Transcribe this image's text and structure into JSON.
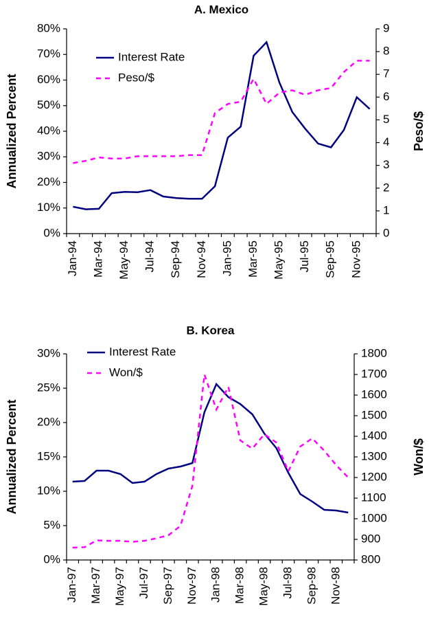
{
  "chart_data": [
    {
      "type": "line",
      "title": "A. Mexico",
      "categories": [
        "Jan-94",
        null,
        "Mar-94",
        null,
        "May-94",
        null,
        "Jul-94",
        null,
        "Sep-94",
        null,
        "Nov-94",
        null,
        "Jan-95",
        null,
        "Mar-95",
        null,
        "May-95",
        null,
        "Jul-95",
        null,
        "Sep-95",
        null,
        "Nov-95",
        null
      ],
      "y_label": "Annualized Percent",
      "y2_label": "Peso/$",
      "ylim": [
        0,
        80
      ],
      "yticks": [
        {
          "value": 0,
          "label": "0%"
        },
        {
          "value": 10,
          "label": "10%"
        },
        {
          "value": 20,
          "label": "20%"
        },
        {
          "value": 30,
          "label": "30%"
        },
        {
          "value": 40,
          "label": "40%"
        },
        {
          "value": 50,
          "label": "50%"
        },
        {
          "value": 60,
          "label": "60%"
        },
        {
          "value": 70,
          "label": "70%"
        },
        {
          "value": 80,
          "label": "80%"
        }
      ],
      "y2lim": [
        0,
        9
      ],
      "y2ticks": [
        0,
        1,
        2,
        3,
        4,
        5,
        6,
        7,
        8,
        9
      ],
      "legend": "upper left",
      "grid": false,
      "series": [
        {
          "name": "Interest Rate",
          "color": "#000080",
          "line_style": "solid",
          "values": [
            10.5,
            9.5,
            9.7,
            15.8,
            16.3,
            16.2,
            17.0,
            14.5,
            13.9,
            13.6,
            13.6,
            18.5,
            37.5,
            41.8,
            69.5,
            74.8,
            59.0,
            47.5,
            41.0,
            35.2,
            33.7,
            40.5,
            53.3,
            48.7
          ]
        },
        {
          "name": "Peso/$",
          "color": "#ff00ff",
          "line_style": "dashed",
          "axis": "y2",
          "values": [
            3.1,
            3.2,
            3.35,
            3.3,
            3.3,
            3.4,
            3.4,
            3.4,
            3.4,
            3.45,
            3.45,
            5.3,
            5.7,
            5.8,
            6.8,
            5.7,
            6.2,
            6.3,
            6.1,
            6.3,
            6.4,
            7.1,
            7.6,
            7.6
          ]
        }
      ]
    },
    {
      "type": "line",
      "title": "B. Korea",
      "categories": [
        "Jan-97",
        null,
        "Mar-97",
        null,
        "May-97",
        null,
        "Jul-97",
        null,
        "Sep-97",
        null,
        "Nov-97",
        null,
        "Jan-98",
        null,
        "Mar-98",
        null,
        "May-98",
        null,
        "Jul-98",
        null,
        "Sep-98",
        null,
        "Nov-98",
        null
      ],
      "y_label": "Annualized Percent",
      "y2_label": "Won/$",
      "ylim": [
        0,
        30
      ],
      "yticks": [
        {
          "value": 0,
          "label": "0%"
        },
        {
          "value": 5,
          "label": "5%"
        },
        {
          "value": 10,
          "label": "10%"
        },
        {
          "value": 15,
          "label": "15%"
        },
        {
          "value": 20,
          "label": "20%"
        },
        {
          "value": 25,
          "label": "25%"
        },
        {
          "value": 30,
          "label": "30%"
        }
      ],
      "y2lim": [
        800,
        1800
      ],
      "y2ticks": [
        800,
        900,
        1000,
        1100,
        1200,
        1300,
        1400,
        1500,
        1600,
        1700,
        1800
      ],
      "legend": "upper left",
      "grid": false,
      "series": [
        {
          "name": "Interest Rate",
          "color": "#000080",
          "line_style": "solid",
          "values": [
            11.4,
            11.5,
            13.0,
            13.0,
            12.5,
            11.2,
            11.4,
            12.5,
            13.3,
            13.6,
            14.1,
            21.5,
            25.6,
            23.7,
            22.7,
            21.2,
            18.4,
            16.3,
            12.7,
            9.6,
            8.5,
            7.3,
            7.2,
            6.9
          ]
        },
        {
          "name": "Won/$",
          "color": "#ff00ff",
          "line_style": "dashed",
          "axis": "y2",
          "values": [
            860,
            862,
            895,
            893,
            893,
            888,
            893,
            905,
            920,
            965,
            1160,
            1700,
            1530,
            1640,
            1380,
            1340,
            1410,
            1370,
            1230,
            1350,
            1390,
            1330,
            1260,
            1200
          ]
        }
      ]
    }
  ]
}
